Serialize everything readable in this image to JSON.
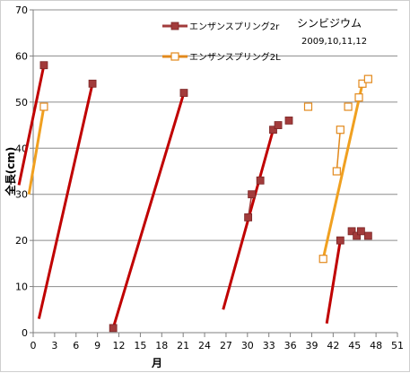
{
  "chart_data": {
    "type": "scatter",
    "title": "シンビジウム",
    "subtitle": "2009,10,11,12",
    "xlabel": "月",
    "ylabel": "全長(cm)",
    "xlim": [
      0,
      51
    ],
    "ylim": [
      0,
      70
    ],
    "xticks": [
      0,
      3,
      6,
      9,
      12,
      15,
      18,
      21,
      24,
      27,
      30,
      33,
      36,
      39,
      42,
      45,
      48,
      51
    ],
    "yticks": [
      0,
      10,
      20,
      30,
      40,
      50,
      60,
      70
    ],
    "grid": "horizontal",
    "legend_position": "top",
    "series": [
      {
        "name": "エンザンスプリング2r",
        "color": "#a23b3b",
        "marker": "filled-square",
        "points": [
          [
            1.5,
            58
          ],
          [
            8.3,
            54
          ],
          [
            11.2,
            1
          ],
          [
            21.1,
            52
          ],
          [
            30.1,
            25
          ],
          [
            30.6,
            30
          ],
          [
            31.8,
            33
          ],
          [
            33.6,
            44
          ],
          [
            34.3,
            45
          ],
          [
            35.8,
            46
          ],
          [
            43.0,
            20
          ],
          [
            44.6,
            22
          ],
          [
            45.3,
            21
          ],
          [
            45.9,
            22
          ],
          [
            46.9,
            21
          ]
        ]
      },
      {
        "name": "エンザンスプリング2L",
        "color": "#e2891c",
        "marker": "open-square",
        "points": [
          [
            1.5,
            49
          ],
          [
            38.5,
            49
          ],
          [
            40.6,
            16
          ],
          [
            42.5,
            35
          ],
          [
            43.0,
            44
          ],
          [
            44.1,
            49
          ],
          [
            45.6,
            51
          ],
          [
            46.1,
            54
          ],
          [
            46.9,
            55
          ]
        ]
      }
    ],
    "trendlines": [
      {
        "series": "エンザンスプリング2r",
        "color": "#c00000",
        "points": [
          [
            -2,
            32
          ],
          [
            1.5,
            58
          ]
        ]
      },
      {
        "series": "エンザンスプリング2r",
        "color": "#c00000",
        "points": [
          [
            0.8,
            3
          ],
          [
            8.3,
            54
          ]
        ]
      },
      {
        "series": "エンザンスプリング2r",
        "color": "#c00000",
        "points": [
          [
            11.2,
            1
          ],
          [
            21.1,
            52
          ]
        ]
      },
      {
        "series": "エンザンスプリング2r",
        "color": "#c00000",
        "points": [
          [
            26.6,
            5
          ],
          [
            33.6,
            44
          ]
        ]
      },
      {
        "series": "エンザンスプリング2r",
        "color": "#c00000",
        "points": [
          [
            41.1,
            2
          ],
          [
            43.0,
            20
          ]
        ]
      },
      {
        "series": "エンザンスプリング2L",
        "color": "#f0a020",
        "points": [
          [
            -0.6,
            30
          ],
          [
            1.5,
            49
          ]
        ]
      },
      {
        "series": "エンザンスプリング2L",
        "color": "#f0a020",
        "points": [
          [
            40.6,
            16
          ],
          [
            46.1,
            54
          ]
        ]
      }
    ],
    "connectors": [
      {
        "series": "エンザンスプリング2r",
        "color": "#a23b3b",
        "points": [
          [
            30.1,
            25
          ],
          [
            30.6,
            30
          ]
        ]
      },
      {
        "series": "エンザンスプリング2L",
        "color": "#e2891c",
        "points": [
          [
            42.5,
            35
          ],
          [
            43.0,
            44
          ]
        ]
      }
    ]
  }
}
